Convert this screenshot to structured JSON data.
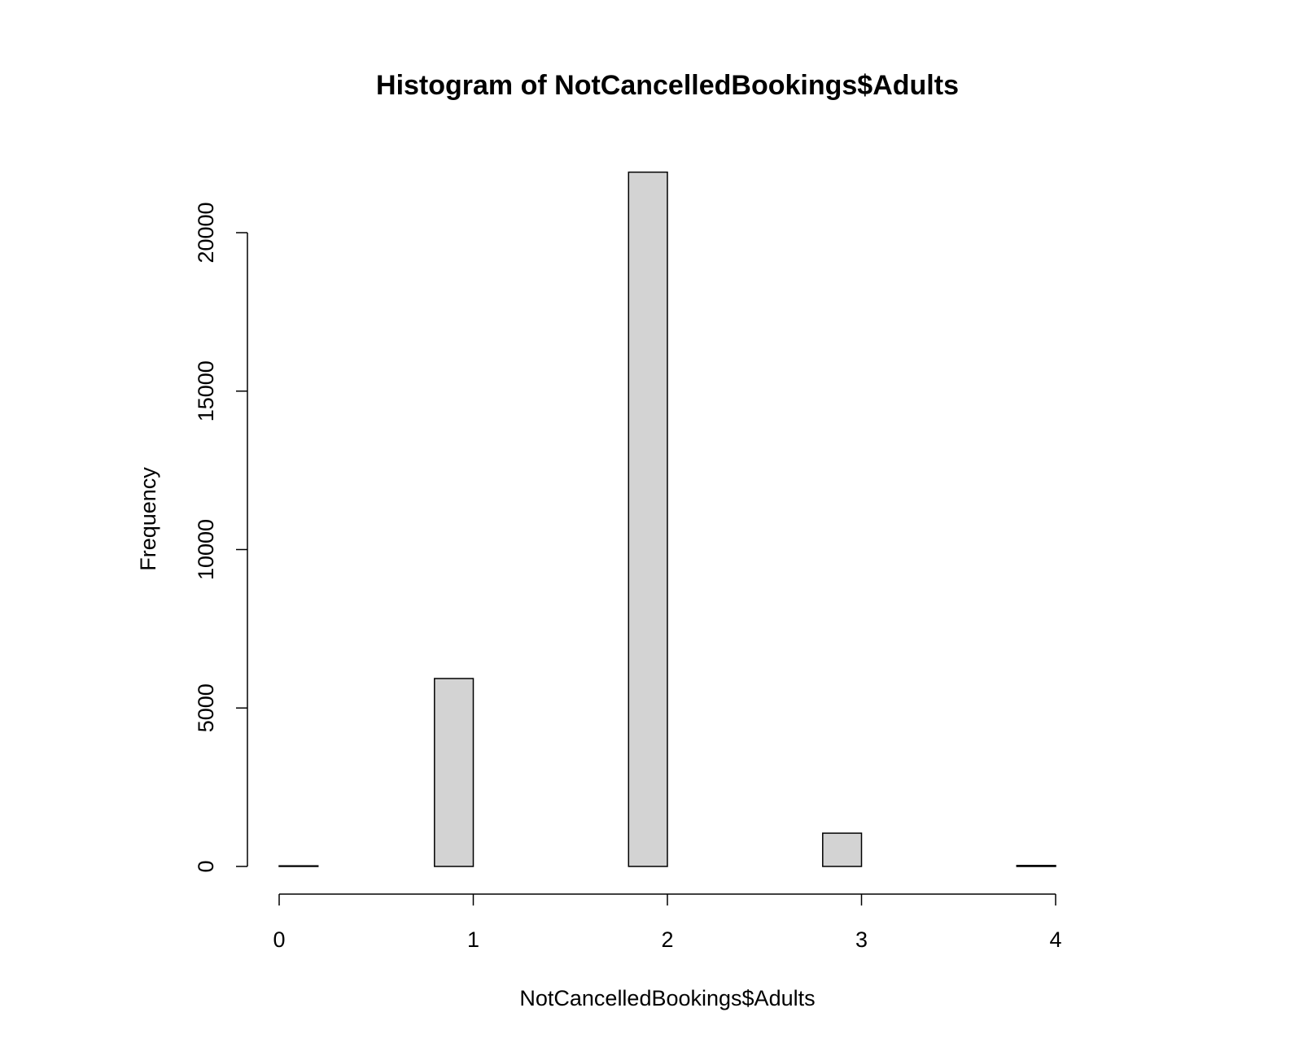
{
  "chart_data": {
    "type": "bar",
    "title": "Histogram of NotCancelledBookings$Adults",
    "xlabel": "NotCancelledBookings$Adults",
    "ylabel": "Frequency",
    "xlim": [
      0,
      4
    ],
    "ylim": [
      0,
      22000
    ],
    "x_ticks": [
      0,
      1,
      2,
      3,
      4
    ],
    "y_ticks": [
      0,
      5000,
      10000,
      15000,
      20000
    ],
    "bins": [
      {
        "x0": 0.0,
        "x1": 0.2,
        "value": 20
      },
      {
        "x0": 0.2,
        "x1": 0.4,
        "value": 0
      },
      {
        "x0": 0.4,
        "x1": 0.6,
        "value": 0
      },
      {
        "x0": 0.6,
        "x1": 0.8,
        "value": 0
      },
      {
        "x0": 0.8,
        "x1": 1.0,
        "value": 5930
      },
      {
        "x0": 1.0,
        "x1": 1.2,
        "value": 0
      },
      {
        "x0": 1.2,
        "x1": 1.4,
        "value": 0
      },
      {
        "x0": 1.4,
        "x1": 1.6,
        "value": 0
      },
      {
        "x0": 1.6,
        "x1": 1.8,
        "value": 0
      },
      {
        "x0": 1.8,
        "x1": 2.0,
        "value": 21910
      },
      {
        "x0": 2.0,
        "x1": 2.2,
        "value": 0
      },
      {
        "x0": 2.2,
        "x1": 2.4,
        "value": 0
      },
      {
        "x0": 2.4,
        "x1": 2.6,
        "value": 0
      },
      {
        "x0": 2.6,
        "x1": 2.8,
        "value": 0
      },
      {
        "x0": 2.8,
        "x1": 3.0,
        "value": 1050
      },
      {
        "x0": 3.0,
        "x1": 3.2,
        "value": 0
      },
      {
        "x0": 3.2,
        "x1": 3.4,
        "value": 0
      },
      {
        "x0": 3.4,
        "x1": 3.6,
        "value": 0
      },
      {
        "x0": 3.6,
        "x1": 3.8,
        "value": 0
      },
      {
        "x0": 3.8,
        "x1": 4.0,
        "value": 30
      }
    ],
    "bar_fill": "#d3d3d3",
    "bar_stroke": "#000000",
    "grid": false,
    "legend": "none"
  }
}
